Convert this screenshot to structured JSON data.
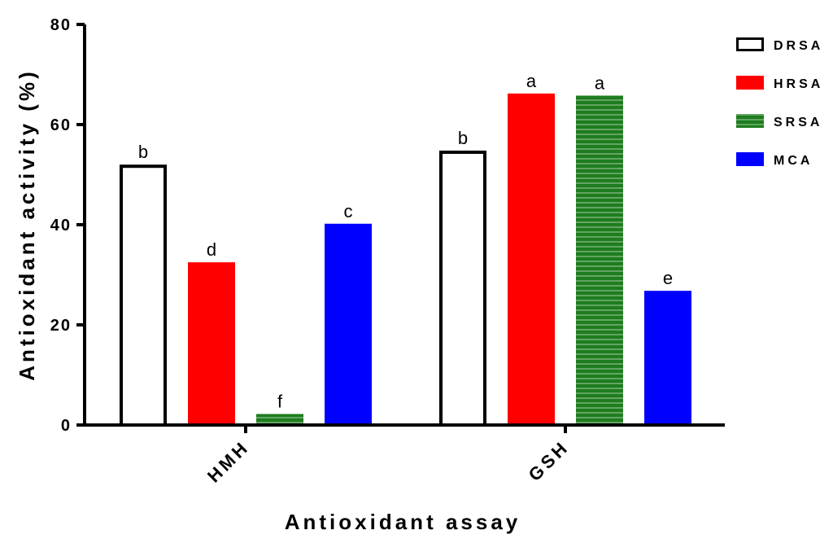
{
  "chart_data": {
    "type": "bar",
    "xlabel": "Antioxidant assay",
    "ylabel": "Antioxidant activity (%)",
    "ylim": [
      0,
      80
    ],
    "yticks": [
      "0",
      "20",
      "40",
      "60",
      "80"
    ],
    "categories": [
      "HMH",
      "GSH"
    ],
    "grid": false,
    "legend_position": "right",
    "series": [
      {
        "name": "DRSA",
        "values": [
          52,
          54.8
        ],
        "letters": [
          "b",
          "b"
        ],
        "color": "#ffffff",
        "stroke": "#000000",
        "pattern": "none"
      },
      {
        "name": "HRSA",
        "values": [
          32.5,
          66.2
        ],
        "letters": [
          "d",
          "a"
        ],
        "color": "#ff0000",
        "stroke": "#ff0000",
        "pattern": "none"
      },
      {
        "name": "SRSA",
        "values": [
          2.2,
          65.8
        ],
        "letters": [
          "f",
          "a"
        ],
        "color": "#1e7d1e",
        "stroke": "#1e7d1e",
        "pattern": "horizontal-lines"
      },
      {
        "name": "MCA",
        "values": [
          40.2,
          26.8
        ],
        "letters": [
          "c",
          "e"
        ],
        "color": "#0000ff",
        "stroke": "#0000ff",
        "pattern": "none"
      }
    ]
  }
}
